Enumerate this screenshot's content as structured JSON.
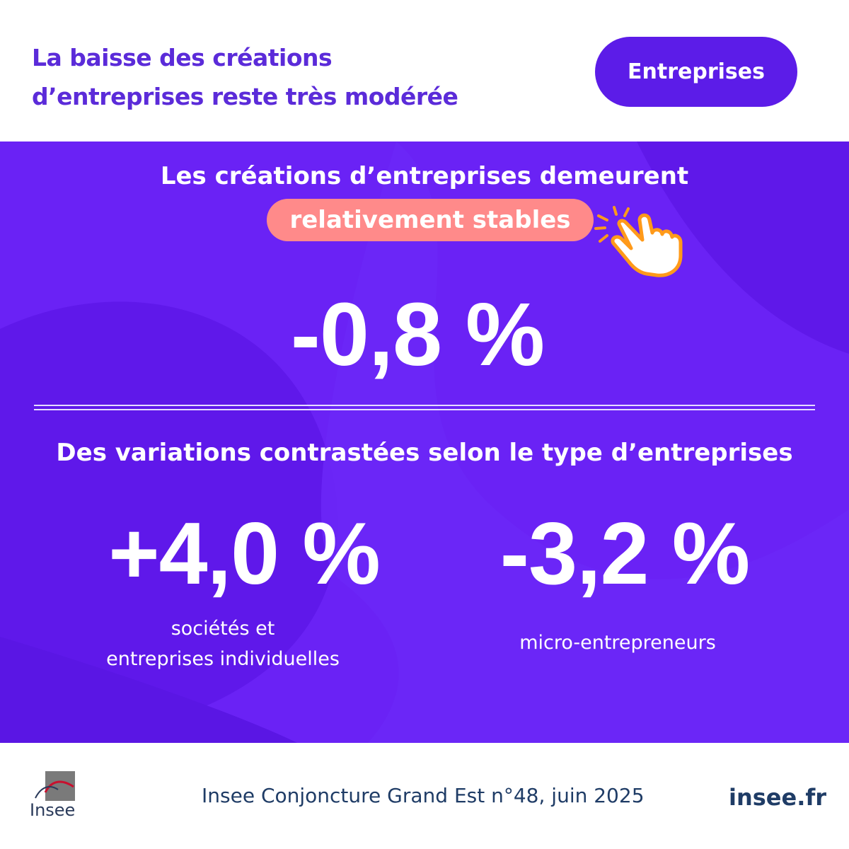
{
  "header": {
    "title_line1": "La baisse des créations",
    "title_line2": "d’entreprises reste très modérée",
    "tag_label": "Entreprises"
  },
  "panel": {
    "lead_text": "Les créations d’entreprises demeurent",
    "highlight_text": "relativement stables",
    "hand_icon": "pointing-hand-icon",
    "main_value": "-0,8 %",
    "section_title": "Des variations contrastées selon le type d’entreprises",
    "stats": [
      {
        "value": "+4,0 %",
        "caption_line1": "sociétés et",
        "caption_line2": "entreprises individuelles"
      },
      {
        "value": "-3,2 %",
        "caption_line1": "micro-entrepreneurs"
      }
    ]
  },
  "footer": {
    "logo_text": "Insee",
    "source": "Insee Conjoncture Grand Est n°48, juin 2025",
    "site": "insee.fr"
  },
  "colors": {
    "title_purple": "#5b2bd9",
    "tag_bg": "#5c1ce8",
    "panel_bg": "#6a22f5",
    "pill_bg": "#ff8a8a",
    "footer_text": "#1f3c66"
  }
}
